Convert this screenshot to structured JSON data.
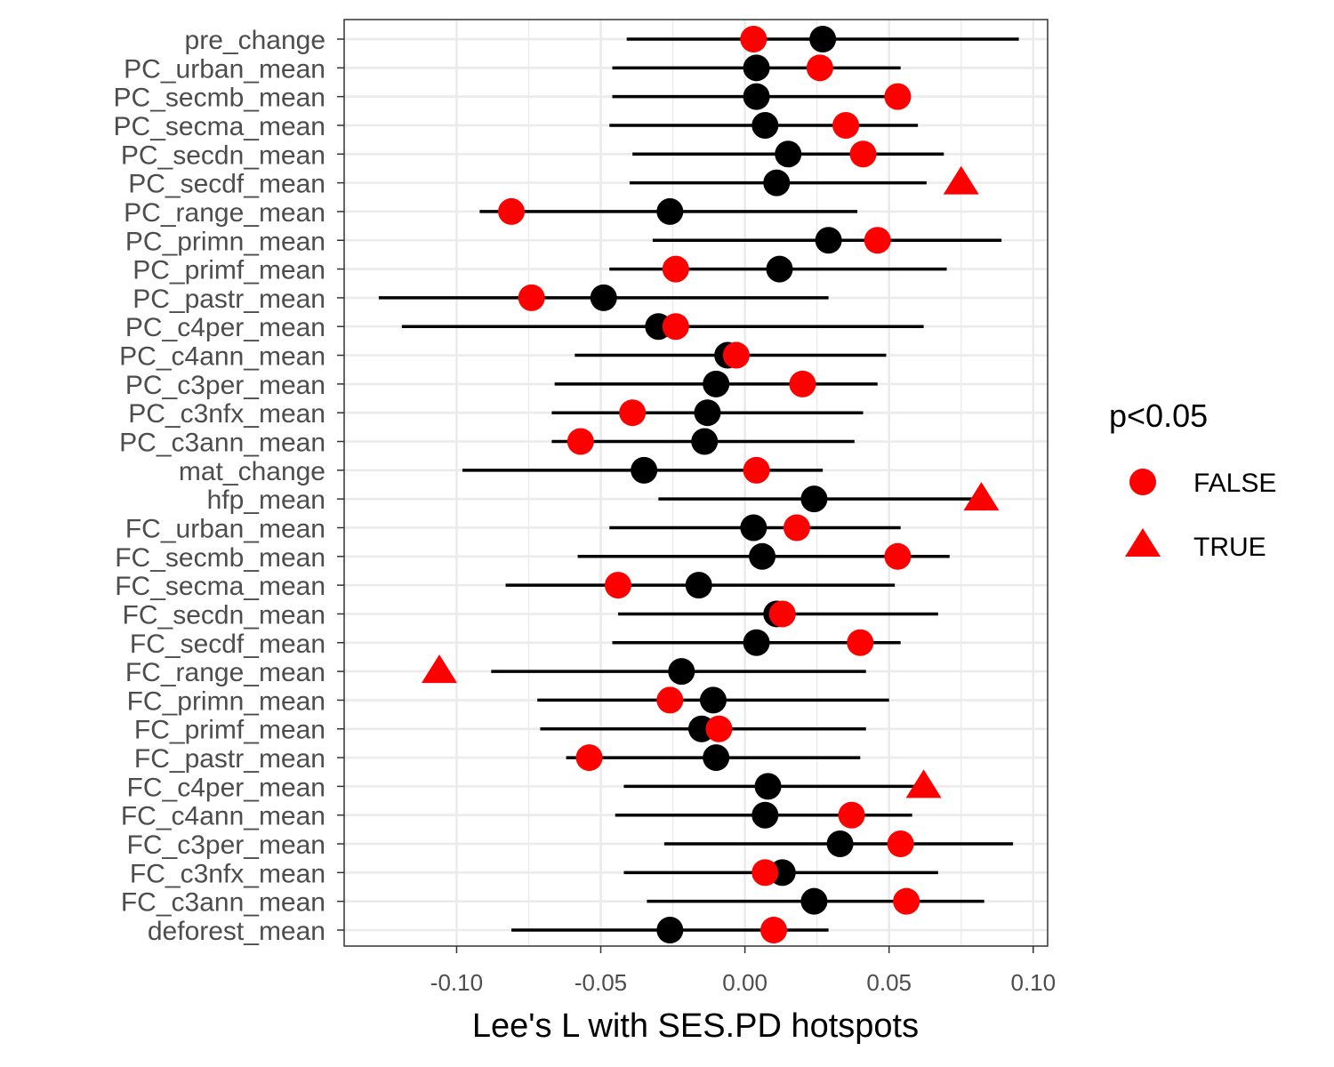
{
  "chart_data": {
    "type": "scatter",
    "xlabel": "Lee's L with SES.PD hotspots",
    "xlim": [
      -0.139,
      0.105
    ],
    "xticks": [
      -0.1,
      -0.05,
      0.0,
      0.05,
      0.1
    ],
    "xtick_labels": [
      "-0.10",
      "-0.05",
      "0.00",
      "0.05",
      "0.10"
    ],
    "grid": true,
    "legend": {
      "title": "p<0.05",
      "placement": "right",
      "entries": [
        {
          "label": "FALSE",
          "shape": "circle",
          "color": "#ff0000"
        },
        {
          "label": "TRUE",
          "shape": "triangle",
          "color": "#ff0000"
        }
      ]
    },
    "colors": {
      "null_point": "#000000",
      "observed_point": "#ff0000",
      "interval": "#000000",
      "grid": "#ebebeb",
      "panel_border": "#333333"
    },
    "rows": [
      {
        "label": "pre_change",
        "lo": -0.041,
        "hi": 0.095,
        "null": 0.027,
        "obs": 0.003,
        "sig": false
      },
      {
        "label": "PC_urban_mean",
        "lo": -0.046,
        "hi": 0.054,
        "null": 0.004,
        "obs": 0.026,
        "sig": false
      },
      {
        "label": "PC_secmb_mean",
        "lo": -0.046,
        "hi": 0.054,
        "null": 0.004,
        "obs": 0.053,
        "sig": false
      },
      {
        "label": "PC_secma_mean",
        "lo": -0.047,
        "hi": 0.06,
        "null": 0.007,
        "obs": 0.035,
        "sig": false
      },
      {
        "label": "PC_secdn_mean",
        "lo": -0.039,
        "hi": 0.069,
        "null": 0.015,
        "obs": 0.041,
        "sig": false
      },
      {
        "label": "PC_secdf_mean",
        "lo": -0.04,
        "hi": 0.063,
        "null": 0.011,
        "obs": 0.075,
        "sig": true
      },
      {
        "label": "PC_range_mean",
        "lo": -0.092,
        "hi": 0.039,
        "null": -0.026,
        "obs": -0.081,
        "sig": false
      },
      {
        "label": "PC_primn_mean",
        "lo": -0.032,
        "hi": 0.089,
        "null": 0.029,
        "obs": 0.046,
        "sig": false
      },
      {
        "label": "PC_primf_mean",
        "lo": -0.047,
        "hi": 0.07,
        "null": 0.012,
        "obs": -0.024,
        "sig": false
      },
      {
        "label": "PC_pastr_mean",
        "lo": -0.127,
        "hi": 0.029,
        "null": -0.049,
        "obs": -0.074,
        "sig": false
      },
      {
        "label": "PC_c4per_mean",
        "lo": -0.119,
        "hi": 0.062,
        "null": -0.03,
        "obs": -0.024,
        "sig": false
      },
      {
        "label": "PC_c4ann_mean",
        "lo": -0.059,
        "hi": 0.049,
        "null": -0.006,
        "obs": -0.003,
        "sig": false
      },
      {
        "label": "PC_c3per_mean",
        "lo": -0.066,
        "hi": 0.046,
        "null": -0.01,
        "obs": 0.02,
        "sig": false
      },
      {
        "label": "PC_c3nfx_mean",
        "lo": -0.067,
        "hi": 0.041,
        "null": -0.013,
        "obs": -0.039,
        "sig": false
      },
      {
        "label": "PC_c3ann_mean",
        "lo": -0.067,
        "hi": 0.038,
        "null": -0.014,
        "obs": -0.057,
        "sig": false
      },
      {
        "label": "mat_change",
        "lo": -0.098,
        "hi": 0.027,
        "null": -0.035,
        "obs": 0.004,
        "sig": false
      },
      {
        "label": "hfp_mean",
        "lo": -0.03,
        "hi": 0.082,
        "null": 0.024,
        "obs": 0.082,
        "sig": true
      },
      {
        "label": "FC_urban_mean",
        "lo": -0.047,
        "hi": 0.054,
        "null": 0.003,
        "obs": 0.018,
        "sig": false
      },
      {
        "label": "FC_secmb_mean",
        "lo": -0.058,
        "hi": 0.071,
        "null": 0.006,
        "obs": 0.053,
        "sig": false
      },
      {
        "label": "FC_secma_mean",
        "lo": -0.083,
        "hi": 0.052,
        "null": -0.016,
        "obs": -0.044,
        "sig": false
      },
      {
        "label": "FC_secdn_mean",
        "lo": -0.044,
        "hi": 0.067,
        "null": 0.011,
        "obs": 0.013,
        "sig": false
      },
      {
        "label": "FC_secdf_mean",
        "lo": -0.046,
        "hi": 0.054,
        "null": 0.004,
        "obs": 0.04,
        "sig": false
      },
      {
        "label": "FC_range_mean",
        "lo": -0.088,
        "hi": 0.042,
        "null": -0.022,
        "obs": -0.106,
        "sig": true
      },
      {
        "label": "FC_primn_mean",
        "lo": -0.072,
        "hi": 0.05,
        "null": -0.011,
        "obs": -0.026,
        "sig": false
      },
      {
        "label": "FC_primf_mean",
        "lo": -0.071,
        "hi": 0.042,
        "null": -0.015,
        "obs": -0.009,
        "sig": false
      },
      {
        "label": "FC_pastr_mean",
        "lo": -0.062,
        "hi": 0.04,
        "null": -0.01,
        "obs": -0.054,
        "sig": false
      },
      {
        "label": "FC_c4per_mean",
        "lo": -0.042,
        "hi": 0.061,
        "null": 0.008,
        "obs": 0.062,
        "sig": true
      },
      {
        "label": "FC_c4ann_mean",
        "lo": -0.045,
        "hi": 0.058,
        "null": 0.007,
        "obs": 0.037,
        "sig": false
      },
      {
        "label": "FC_c3per_mean",
        "lo": -0.028,
        "hi": 0.093,
        "null": 0.033,
        "obs": 0.054,
        "sig": false
      },
      {
        "label": "FC_c3nfx_mean",
        "lo": -0.042,
        "hi": 0.067,
        "null": 0.013,
        "obs": 0.007,
        "sig": false
      },
      {
        "label": "FC_c3ann_mean",
        "lo": -0.034,
        "hi": 0.083,
        "null": 0.024,
        "obs": 0.056,
        "sig": false
      },
      {
        "label": "deforest_mean",
        "lo": -0.081,
        "hi": 0.029,
        "null": -0.026,
        "obs": 0.01,
        "sig": false
      }
    ]
  }
}
